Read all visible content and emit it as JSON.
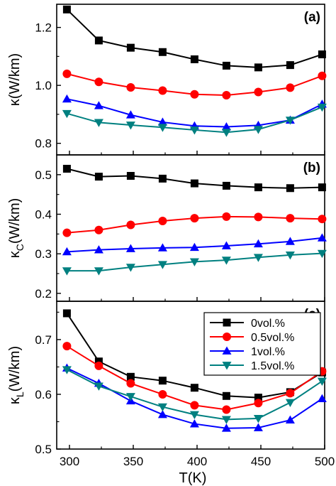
{
  "chart_data": [
    {
      "type": "line",
      "panel_label": "(a)",
      "ylabel": "κ(W/km)",
      "ylabel_main": "κ",
      "ylabel_sub": "",
      "ylabel_unit": "(W/km)",
      "xlim": [
        290,
        500
      ],
      "ylim": [
        0.76,
        1.28
      ],
      "yticks": [
        0.8,
        1.0,
        1.2
      ],
      "ytick_labels": [
        "0.8",
        "1.0",
        "1.2"
      ],
      "x": [
        298,
        323,
        348,
        373,
        398,
        423,
        448,
        473,
        498
      ],
      "series": [
        {
          "name": "0vol.%",
          "color": "#000000",
          "marker": "square",
          "values": [
            1.262,
            1.155,
            1.13,
            1.115,
            1.09,
            1.068,
            1.062,
            1.07,
            1.107
          ]
        },
        {
          "name": "0.5vol.%",
          "color": "#ff0000",
          "marker": "circle",
          "values": [
            1.04,
            1.012,
            0.993,
            0.982,
            0.969,
            0.966,
            0.977,
            0.992,
            1.033
          ]
        },
        {
          "name": "1vol.%",
          "color": "#0000ff",
          "marker": "triangle-up",
          "values": [
            0.953,
            0.93,
            0.898,
            0.873,
            0.86,
            0.857,
            0.862,
            0.88,
            0.935
          ]
        },
        {
          "name": "1.5vol.%",
          "color": "#008080",
          "marker": "triangle-down",
          "values": [
            0.903,
            0.872,
            0.863,
            0.855,
            0.846,
            0.838,
            0.848,
            0.88,
            0.925
          ]
        }
      ]
    },
    {
      "type": "line",
      "panel_label": "(b)",
      "ylabel": "κC(W/km)",
      "ylabel_main": "κ",
      "ylabel_sub": "C",
      "ylabel_unit": "(W/km)",
      "xlim": [
        290,
        500
      ],
      "ylim": [
        0.18,
        0.55
      ],
      "yticks": [
        0.2,
        0.3,
        0.4,
        0.5
      ],
      "ytick_labels": [
        "0.2",
        "0.3",
        "0.4",
        "0.5"
      ],
      "x": [
        298,
        323,
        348,
        373,
        398,
        423,
        448,
        473,
        498
      ],
      "series": [
        {
          "name": "0vol.%",
          "color": "#000000",
          "marker": "square",
          "values": [
            0.515,
            0.495,
            0.497,
            0.49,
            0.478,
            0.472,
            0.468,
            0.466,
            0.468
          ]
        },
        {
          "name": "0.5vol.%",
          "color": "#ff0000",
          "marker": "circle",
          "values": [
            0.353,
            0.36,
            0.373,
            0.383,
            0.39,
            0.394,
            0.393,
            0.39,
            0.388
          ]
        },
        {
          "name": "1vol.%",
          "color": "#0000ff",
          "marker": "triangle-up",
          "values": [
            0.305,
            0.31,
            0.313,
            0.315,
            0.316,
            0.32,
            0.325,
            0.331,
            0.34
          ]
        },
        {
          "name": "1.5vol.%",
          "color": "#008080",
          "marker": "triangle-down",
          "values": [
            0.257,
            0.257,
            0.266,
            0.273,
            0.28,
            0.284,
            0.291,
            0.297,
            0.301
          ]
        }
      ]
    },
    {
      "type": "line",
      "panel_label": "(c)",
      "ylabel": "κL(W/km)",
      "ylabel_main": "κ",
      "ylabel_sub": "L",
      "ylabel_unit": "(W/km)",
      "xlabel": "T(K)",
      "xlim": [
        290,
        500
      ],
      "ylim": [
        0.5,
        0.77
      ],
      "yticks": [
        0.5,
        0.6,
        0.7
      ],
      "ytick_labels": [
        "0.5",
        "0.6",
        "0.7"
      ],
      "xticks": [
        300,
        350,
        400,
        450,
        500
      ],
      "xtick_labels": [
        "300",
        "350",
        "400",
        "450",
        "500"
      ],
      "legend": "top-right",
      "x": [
        298,
        323,
        348,
        373,
        398,
        423,
        448,
        473,
        498
      ],
      "series": [
        {
          "name": "0vol.%",
          "color": "#000000",
          "marker": "square",
          "values": [
            0.748,
            0.66,
            0.632,
            0.625,
            0.612,
            0.597,
            0.594,
            0.604,
            0.64
          ]
        },
        {
          "name": "0.5vol.%",
          "color": "#ff0000",
          "marker": "circle",
          "values": [
            0.688,
            0.652,
            0.62,
            0.6,
            0.58,
            0.572,
            0.584,
            0.602,
            0.642
          ]
        },
        {
          "name": "1vol.%",
          "color": "#0000ff",
          "marker": "triangle-up",
          "values": [
            0.648,
            0.62,
            0.588,
            0.563,
            0.546,
            0.538,
            0.539,
            0.553,
            0.592
          ]
        },
        {
          "name": "1.5vol.%",
          "color": "#008080",
          "marker": "triangle-down",
          "values": [
            0.645,
            0.615,
            0.596,
            0.577,
            0.563,
            0.554,
            0.556,
            0.585,
            0.624
          ]
        }
      ]
    }
  ]
}
